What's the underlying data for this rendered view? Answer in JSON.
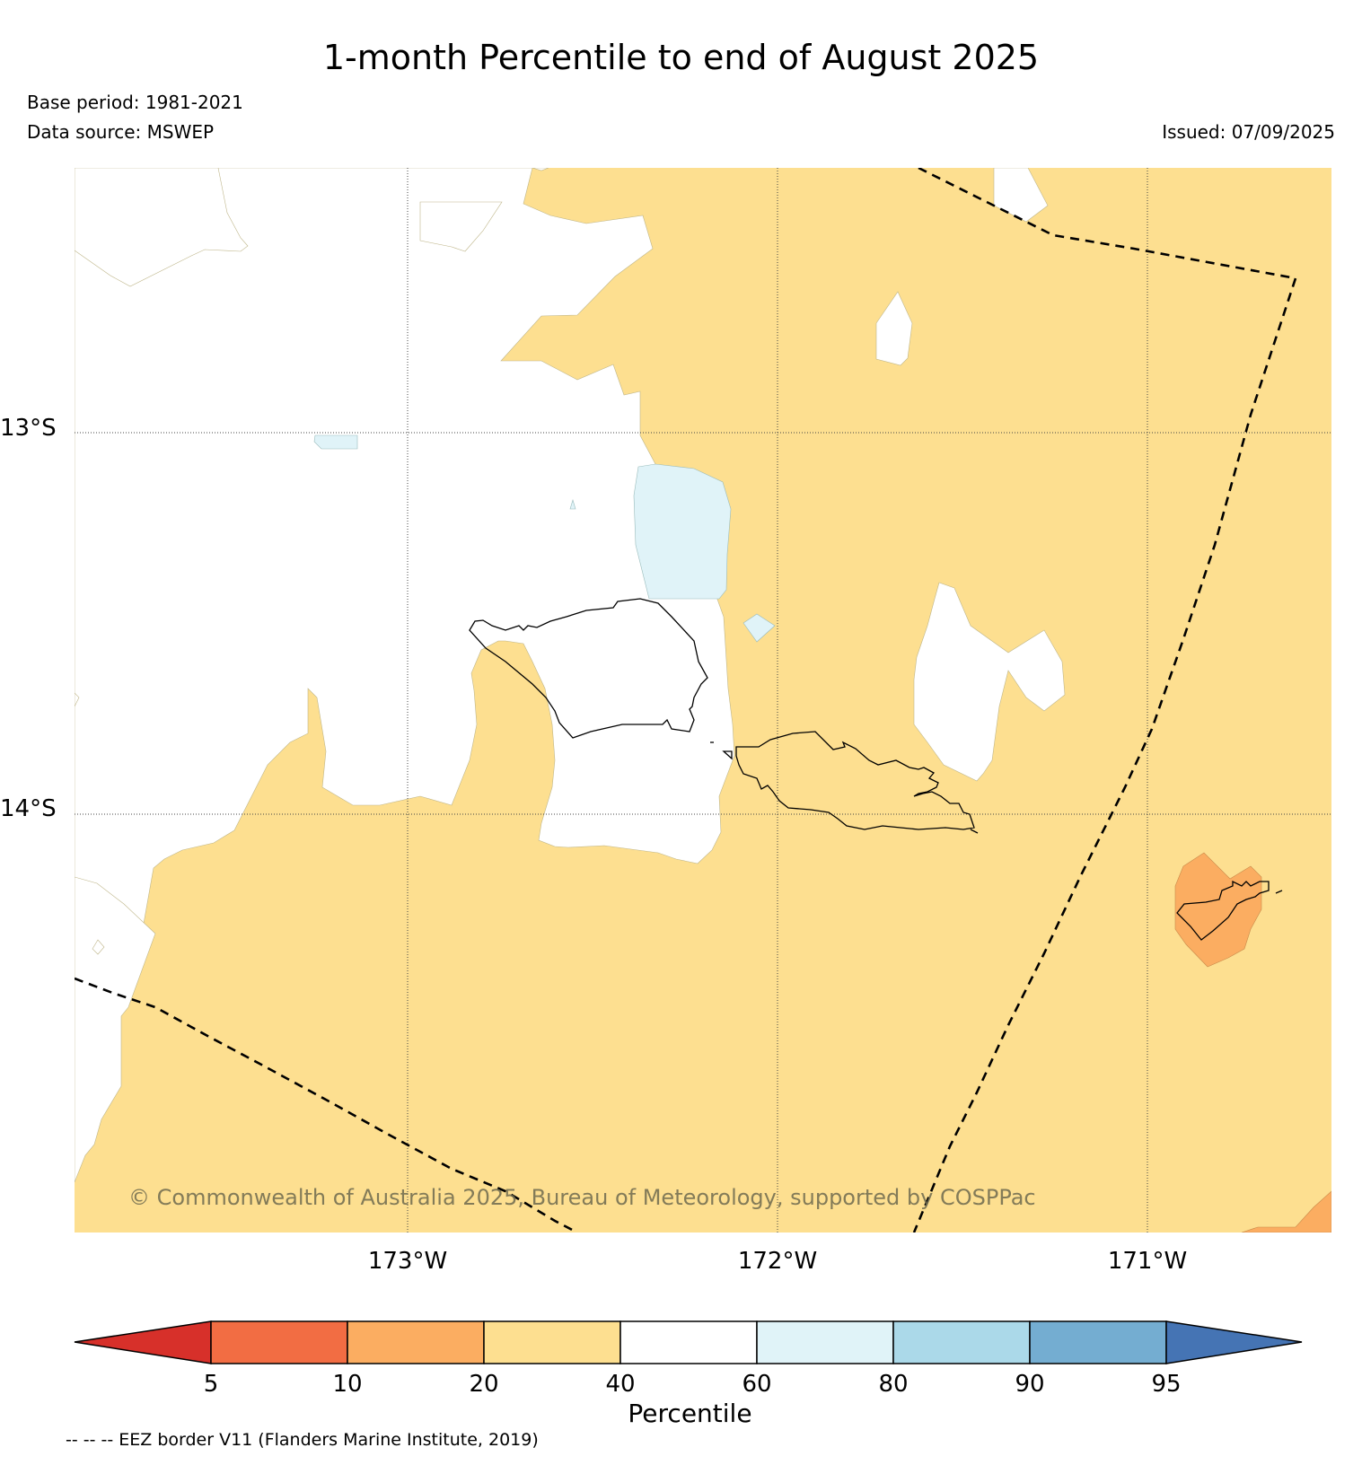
{
  "title": "1-month Percentile to end of August 2025",
  "base_period": "Base period: 1981-2021",
  "data_source": "Data source: MSWEP",
  "issued": "Issued: 07/09/2025",
  "copyright": "© Commonwealth of Australia 2025, Bureau of Meteorology, supported by COSPPac",
  "latitudes": [
    "13°S",
    "14°S"
  ],
  "longitudes": [
    "173°W",
    "172°W",
    "171°W"
  ],
  "colorbar": {
    "label": "Percentile",
    "ticks": [
      "5",
      "10",
      "20",
      "40",
      "60",
      "80",
      "90",
      "95"
    ],
    "colors": [
      "#d7302a",
      "#f26d43",
      "#fbad61",
      "#fddf90",
      "#ffffff",
      "#e0f3f8",
      "#abd9e9",
      "#74add1",
      "#4574b4"
    ]
  },
  "eez_note": "-- -- -- EEZ border V11 (Flanders Marine Institute, 2019)"
}
